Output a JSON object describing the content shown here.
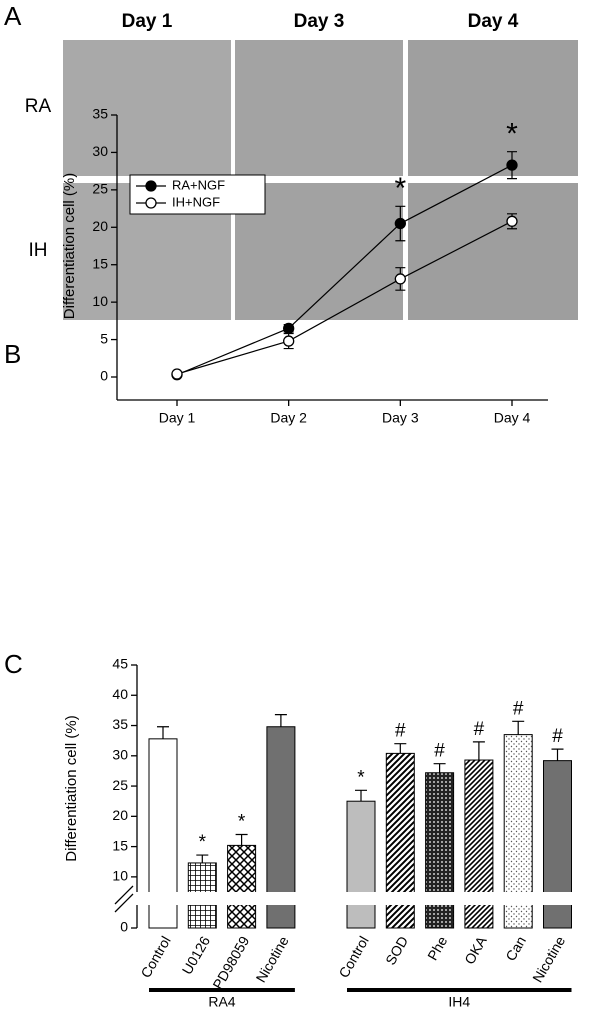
{
  "panel_a": {
    "label": "A",
    "columns": [
      "Day 1",
      "Day 3",
      "Day 4"
    ],
    "rows": [
      "RA",
      "IH"
    ]
  },
  "chart_data": [
    {
      "type": "line",
      "panel_label": "B",
      "y_label": "Differentiation cell (%)",
      "categories": [
        "Day 1",
        "Day 2",
        "Day 3",
        "Day 4"
      ],
      "series": [
        {
          "name": "RA+NGF",
          "color": "#000000",
          "marker": "filled",
          "values": [
            0.3,
            6.5,
            20.5,
            28.3
          ],
          "errors": [
            0.2,
            0.5,
            2.3,
            1.8
          ]
        },
        {
          "name": "IH+NGF",
          "color": "#000000",
          "marker": "open",
          "values": [
            0.4,
            4.8,
            13.1,
            20.8
          ],
          "errors": [
            0.2,
            1.0,
            1.5,
            1.0
          ]
        }
      ],
      "annotations": [
        null,
        null,
        "*",
        "*"
      ],
      "ylim": [
        0,
        35
      ],
      "yticks": [
        0,
        5,
        10,
        15,
        20,
        25,
        30,
        35
      ],
      "legend": "upper left"
    },
    {
      "type": "bar",
      "panel_label": "C",
      "y_label": "Differentiation cell (%)",
      "broken_axis": true,
      "groups": [
        {
          "label": "RA4",
          "categories": [
            "Control",
            "U0126",
            "PD98059",
            "Nicotine"
          ],
          "values": [
            32.8,
            12.3,
            15.2,
            34.8
          ],
          "errors": [
            2.0,
            1.3,
            1.8,
            2.0
          ],
          "annotations": [
            null,
            "*",
            "*",
            null
          ],
          "colors": [
            "#ffffff",
            "#ffffff",
            "#ffffff",
            "#707070"
          ],
          "patterns": [
            "none",
            "grid",
            "crosshatch",
            "none"
          ]
        },
        {
          "label": "IH4",
          "categories": [
            "Control",
            "SOD",
            "Phe",
            "OKA",
            "Can",
            "Nicotine"
          ],
          "values": [
            22.5,
            30.4,
            27.2,
            29.3,
            33.5,
            29.2
          ],
          "errors": [
            1.8,
            1.6,
            1.5,
            3.0,
            2.2,
            1.9
          ],
          "annotations": [
            "*",
            "#",
            "#",
            "#",
            "#",
            "#"
          ],
          "colors": [
            "#bdbdbd",
            "#ffffff",
            "#ffffff",
            "#ffffff",
            "#ffffff",
            "#707070"
          ],
          "patterns": [
            "none",
            "diagonal",
            "dots",
            "diagonal2",
            "lightdots",
            "none"
          ]
        }
      ],
      "ylim": [
        0,
        45
      ],
      "yticks": [
        0,
        10,
        15,
        20,
        25,
        30,
        35,
        40,
        45
      ]
    }
  ]
}
